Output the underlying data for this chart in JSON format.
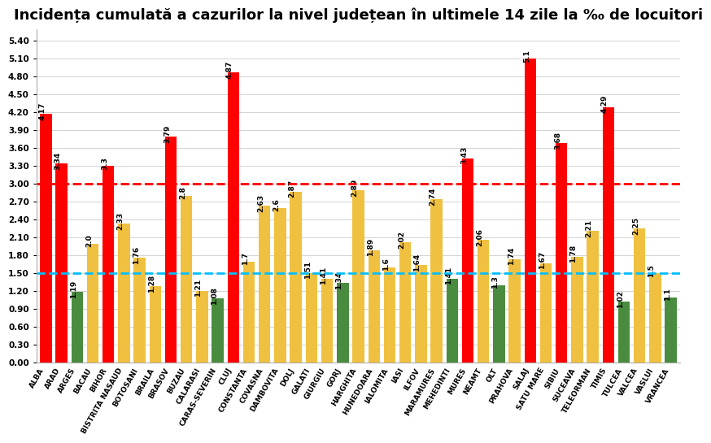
{
  "title": "Incidența cumulată a cazurilor la nivel județean în ultimele 14 zile la ‰ de locuitori",
  "categories": [
    "ALBA",
    "ARAD",
    "ARGES",
    "BACAU",
    "BIHOR",
    "BISTRITA NASAUD",
    "BOTOSANI",
    "BRAILA",
    "BRASOV",
    "BUZAU",
    "CALARASI",
    "CARAS-SEVERIN",
    "CLUJ",
    "CONSTANTA",
    "COVASNA",
    "DAMBOVITA",
    "DOLJ",
    "GALATI",
    "GIURGIU",
    "GORJ",
    "HARGHITA",
    "HUNEDOARA",
    "IALOMITA",
    "IASI",
    "ILFOV",
    "MARAMURES",
    "MEHEDINTI",
    "MURES",
    "NEAMT",
    "OLT",
    "PRAHOVA",
    "SALAJ",
    "SATU MARE",
    "SIBIU",
    "SUCEAVA",
    "TELEORMAN",
    "TIMIS",
    "TULCEA",
    "VALCEA",
    "VASLUI",
    "VRANCEA"
  ],
  "values": [
    4.17,
    3.34,
    1.19,
    2.0,
    3.3,
    2.33,
    1.76,
    1.28,
    3.79,
    2.8,
    1.21,
    1.08,
    4.87,
    1.7,
    2.63,
    2.6,
    2.87,
    1.51,
    1.41,
    1.34,
    2.89,
    1.89,
    1.6,
    2.02,
    1.64,
    2.74,
    1.41,
    3.43,
    2.06,
    1.3,
    1.74,
    5.1,
    1.67,
    3.68,
    1.78,
    2.21,
    4.29,
    1.02,
    2.25,
    1.5,
    1.1
  ],
  "colors": [
    "red",
    "red",
    "#4a8c3f",
    "#f0c040",
    "red",
    "#f0c040",
    "#f0c040",
    "#f0c040",
    "red",
    "#f0c040",
    "#f0c040",
    "#4a8c3f",
    "red",
    "#f0c040",
    "#f0c040",
    "#f0c040",
    "#f0c040",
    "#f0c040",
    "#f0c040",
    "#4a8c3f",
    "#f0c040",
    "#f0c040",
    "#f0c040",
    "#f0c040",
    "#f0c040",
    "#f0c040",
    "#4a8c3f",
    "red",
    "#f0c040",
    "#4a8c3f",
    "#f0c040",
    "red",
    "#f0c040",
    "red",
    "#f0c040",
    "#f0c040",
    "red",
    "#4a8c3f",
    "#f0c040",
    "#f0c040",
    "#4a8c3f"
  ],
  "red_line": 3.0,
  "blue_line": 1.5,
  "ylim_max": 5.6,
  "yticks": [
    0.0,
    0.3,
    0.6,
    0.9,
    1.2,
    1.5,
    1.8,
    2.1,
    2.4,
    2.7,
    3.0,
    3.3,
    3.6,
    3.9,
    4.2,
    4.5,
    4.8,
    5.1,
    5.4
  ],
  "title_fontsize": 13,
  "bar_width": 0.75,
  "label_fontsize": 6.5,
  "tick_fontsize": 7.5,
  "xtick_fontsize": 6.5
}
